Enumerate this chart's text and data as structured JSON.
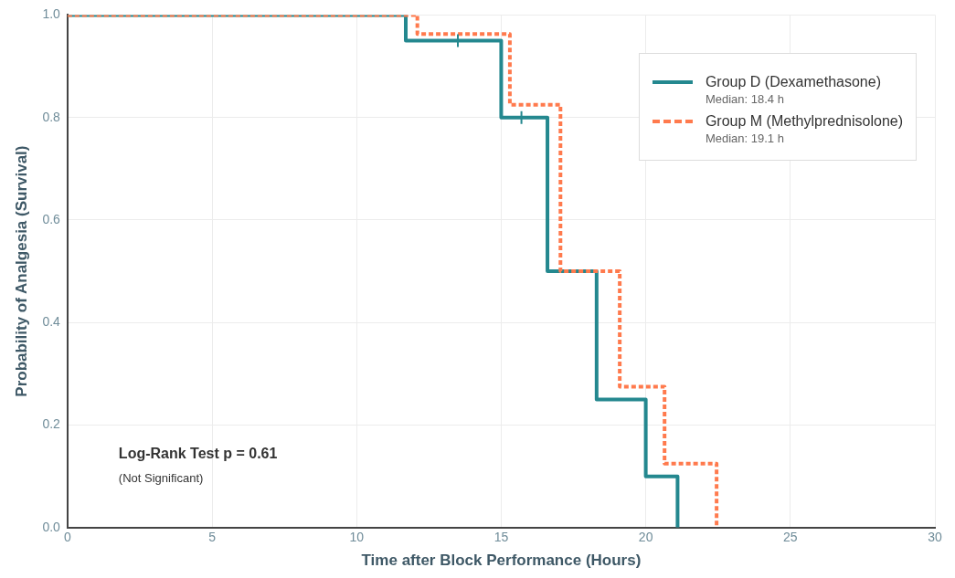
{
  "chart_data": {
    "type": "step",
    "xlabel": "Time after Block Performance (Hours)",
    "ylabel": "Probability of Analgesia (Survival)",
    "xlim": [
      0,
      30
    ],
    "xticks": [
      0,
      5,
      10,
      15,
      20,
      25,
      30
    ],
    "ylim": [
      0,
      1
    ],
    "yticks": [
      {
        "value": 0,
        "label": "0.0"
      },
      {
        "value": 0.2,
        "label": "0.2"
      },
      {
        "value": 0.4,
        "label": "0.4"
      },
      {
        "value": 0.6,
        "label": "0.6"
      },
      {
        "value": 0.8,
        "label": "0.8"
      },
      {
        "value": 1,
        "label": "1.0"
      }
    ],
    "grid": true,
    "legend": "top right",
    "marker": "none",
    "series": [
      {
        "name": "Group D (Dexamethasone)",
        "color": "#24888f",
        "line_style": "solid",
        "x": [
          0,
          11.7,
          15.0,
          16.6,
          18.3,
          20.0,
          21.1
        ],
        "values": [
          1,
          0.95,
          0.8,
          0.5,
          0.25,
          0.1,
          0
        ]
      },
      {
        "name": "Group M (Methylprednisolone)",
        "color": "#ff7a4d",
        "line_style": "dashed",
        "x": [
          0,
          12.1,
          15.3,
          17.05,
          19.1,
          20.65,
          22.45
        ],
        "values": [
          1,
          0.963,
          0.825,
          0.5,
          0.275,
          0.125,
          0
        ]
      },
      {
        "type": "scatter",
        "color": "#24888f",
        "marker": "cross",
        "x": [
          13.5,
          15.7
        ],
        "values": [
          0.95,
          0.8
        ]
      }
    ],
    "annotations": [
      "Median: 18.4 h",
      "Median: 19.1 h",
      "Log-Rank Test p = 0.61",
      "(Not Significant)"
    ]
  }
}
